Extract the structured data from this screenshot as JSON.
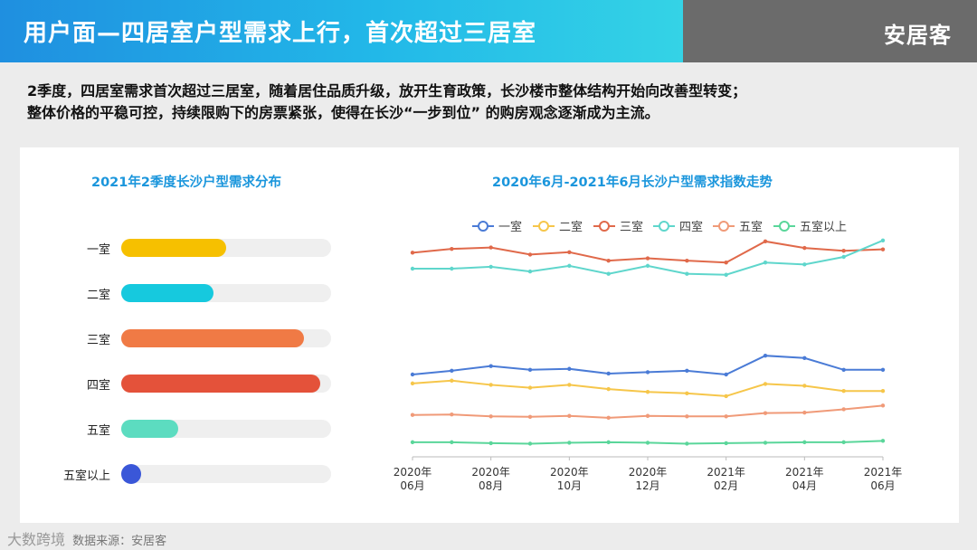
{
  "header": {
    "title": "用户面—四居室户型需求上行，首次超过三居室",
    "brand": "安居客"
  },
  "intro": {
    "line1": "2季度，四居室需求首次超过三居室，随着居住品质升级，放开生育政策，长沙楼市整体结构开始向改善型转变；",
    "line2": "整体价格的平稳可控，持续限购下的房票紧张，使得在长沙“一步到位” 的购房观念逐渐成为主流。"
  },
  "footer": {
    "watermark": "大数跨境",
    "source": "数据来源：安居客"
  },
  "chart_data": [
    {
      "type": "bar",
      "title": "2021年2季度长沙户型需求分布",
      "categories": [
        "一室",
        "二室",
        "三室",
        "四室",
        "五室",
        "五室以上"
      ],
      "values": [
        0.5,
        0.44,
        0.87,
        0.95,
        0.27,
        0.06
      ],
      "colors": [
        "#f6c000",
        "#16c9de",
        "#f07a45",
        "#e4523a",
        "#5cdcc0",
        "#3a57d8"
      ]
    },
    {
      "type": "line",
      "title": "2020年6月-2021年6月长沙户型需求指数走势",
      "x": [
        "2020年06月",
        "2020年07月",
        "2020年08月",
        "2020年09月",
        "2020年10月",
        "2020年11月",
        "2020年12月",
        "2021年01月",
        "2021年02月",
        "2021年03月",
        "2021年04月",
        "2021年05月",
        "2021年06月"
      ],
      "tick_labels": [
        {
          "year": "2020年",
          "month": "06月"
        },
        {
          "year": "2020年",
          "month": "08月"
        },
        {
          "year": "2020年",
          "month": "10月"
        },
        {
          "year": "2020年",
          "month": "12月"
        },
        {
          "year": "2021年",
          "month": "02月"
        },
        {
          "year": "2021年",
          "month": "04月"
        },
        {
          "year": "2021年",
          "month": "06月"
        }
      ],
      "legend_position": "top",
      "grid": false,
      "ylim": [
        0,
        100
      ],
      "series": [
        {
          "name": "一室",
          "color": "#4a7bd6",
          "values": [
            35.0,
            36.6,
            38.6,
            37.0,
            37.4,
            35.4,
            36.0,
            36.6,
            35.0,
            43.0,
            42.0,
            37.0,
            37.0
          ]
        },
        {
          "name": "二室",
          "color": "#f6c64a",
          "values": [
            31.2,
            32.4,
            30.6,
            29.4,
            30.6,
            28.8,
            27.6,
            27.0,
            25.8,
            31.0,
            30.2,
            28.0,
            28.0
          ]
        },
        {
          "name": "三室",
          "color": "#e0694a",
          "values": [
            86.8,
            88.4,
            89.0,
            86.0,
            87.0,
            83.4,
            84.4,
            83.4,
            82.6,
            91.6,
            88.8,
            87.6,
            88.2
          ]
        },
        {
          "name": "四室",
          "color": "#5fd6cc",
          "values": [
            80.0,
            80.0,
            80.8,
            78.8,
            81.2,
            77.8,
            81.2,
            77.8,
            77.4,
            82.6,
            81.8,
            85.0,
            92.0
          ]
        },
        {
          "name": "五室",
          "color": "#f09a78",
          "values": [
            17.8,
            18.0,
            17.2,
            17.0,
            17.4,
            16.6,
            17.4,
            17.2,
            17.2,
            18.6,
            18.8,
            20.2,
            21.8
          ]
        },
        {
          "name": "五室以上",
          "color": "#5ad69a",
          "values": [
            6.2,
            6.2,
            5.8,
            5.6,
            6.0,
            6.2,
            6.0,
            5.6,
            5.8,
            6.0,
            6.2,
            6.2,
            6.8
          ]
        }
      ]
    }
  ]
}
